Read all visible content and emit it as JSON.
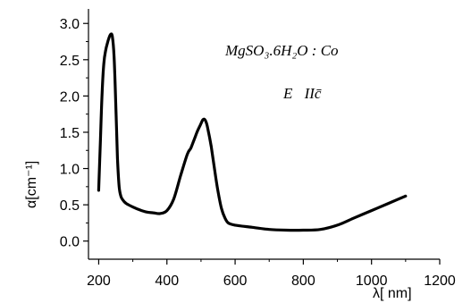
{
  "chart_data": {
    "type": "line",
    "xlabel": "λ[ nm]",
    "ylabel": "α[cm⁻¹]",
    "xlim": [
      170,
      1200
    ],
    "ylim": [
      -0.25,
      3.2
    ],
    "x_ticks": [
      200,
      400,
      600,
      800,
      1000,
      1200
    ],
    "y_ticks": [
      0.0,
      0.5,
      1.0,
      1.5,
      2.0,
      2.5,
      3.0
    ],
    "x_tick_labels": [
      "200",
      "400",
      "600",
      "800",
      "1000",
      "1200"
    ],
    "y_tick_labels": [
      "0.0",
      "0.5",
      "1.0",
      "1.5",
      "2.0",
      "2.5",
      "3.0"
    ],
    "grid": false,
    "annotations": [
      "MgSO₃.6H₂O : Co",
      "E⃗IIc̄"
    ],
    "series": [
      {
        "x": [
          200,
          205,
          210,
          215,
          220,
          225,
          230,
          235,
          240,
          245,
          250,
          255,
          260,
          265,
          270,
          280,
          300,
          320,
          340,
          360,
          380,
          400,
          420,
          440,
          460,
          470,
          480,
          490,
          500,
          505,
          510,
          515,
          520,
          530,
          540,
          550,
          560,
          570,
          580,
          600,
          650,
          700,
          750,
          800,
          850,
          900,
          950,
          1000,
          1050,
          1080,
          1100
        ],
        "values": [
          0.7,
          1.4,
          2.05,
          2.45,
          2.62,
          2.72,
          2.8,
          2.85,
          2.82,
          2.55,
          1.9,
          1.15,
          0.75,
          0.62,
          0.57,
          0.52,
          0.47,
          0.43,
          0.4,
          0.39,
          0.38,
          0.42,
          0.58,
          0.9,
          1.2,
          1.28,
          1.4,
          1.52,
          1.62,
          1.67,
          1.68,
          1.64,
          1.55,
          1.3,
          0.98,
          0.68,
          0.45,
          0.32,
          0.25,
          0.22,
          0.19,
          0.16,
          0.15,
          0.15,
          0.16,
          0.22,
          0.32,
          0.42,
          0.52,
          0.58,
          0.62
        ]
      }
    ]
  }
}
